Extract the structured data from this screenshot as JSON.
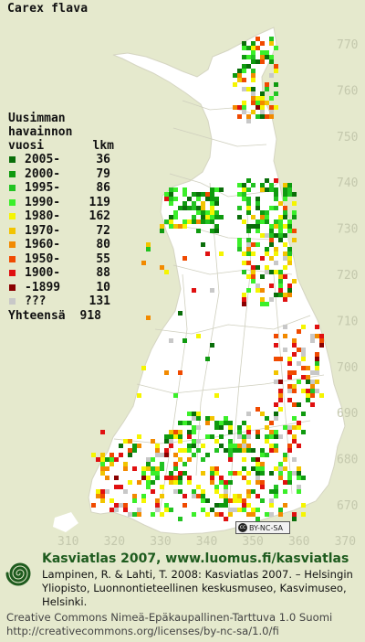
{
  "species": "Carex flava",
  "legend": {
    "heading_line1": "Uusimman",
    "heading_line2": "havainnon",
    "heading_col_left": "vuosi",
    "heading_col_right": "lkm",
    "classes": [
      {
        "label": "2005-",
        "count": "36",
        "color": "#0a6e0a"
      },
      {
        "label": "2000-",
        "count": "79",
        "color": "#0f9a0f"
      },
      {
        "label": "1995-",
        "count": "86",
        "color": "#22c322"
      },
      {
        "label": "1990-",
        "count": "119",
        "color": "#3bef2a"
      },
      {
        "label": "1980-",
        "count": "162",
        "color": "#f5f500"
      },
      {
        "label": "1970-",
        "count": "72",
        "color": "#f2c400"
      },
      {
        "label": "1960-",
        "count": "80",
        "color": "#f28a00"
      },
      {
        "label": "1950-",
        "count": "55",
        "color": "#f04a00"
      },
      {
        "label": "1900-",
        "count": "88",
        "color": "#e01010"
      },
      {
        "label": "-1899",
        "count": "10",
        "color": "#8a0000"
      },
      {
        "label": "???",
        "count": "131",
        "color": "#c8c8c8"
      }
    ],
    "total_label": "Yhteensä",
    "total_count": "918"
  },
  "grid_labels": {
    "north": [
      "770",
      "760",
      "750",
      "740",
      "730",
      "720",
      "710",
      "700",
      "690",
      "680",
      "670"
    ],
    "east": [
      "310",
      "320",
      "330",
      "340",
      "350",
      "360",
      "370"
    ]
  },
  "license_badge": "BY-NC-SA",
  "footer": {
    "atlas_title": "Kasviatlas 2007, www.luomus.fi/kasviatlas",
    "citation": "Lampinen, R. & Lahti, T. 2008: Kasviatlas 2007. – Helsingin Yliopisto, Luonnontieteellinen keskusmuseo, Kasvimuseo, Helsinki.",
    "license_line1": "Creative Commons Nimeä-Epäkaupallinen-Tarttuva 1.0 Suomi",
    "license_line2": "http://creativecommons.org/licenses/by-nc-sa/1.0/fi"
  },
  "colors": {
    "background": "#e5e9cd",
    "land": "#ffffff",
    "border": "#c7c7b3",
    "grid_label": "#c4c8ad",
    "brand_green": "#1e5b1e"
  }
}
